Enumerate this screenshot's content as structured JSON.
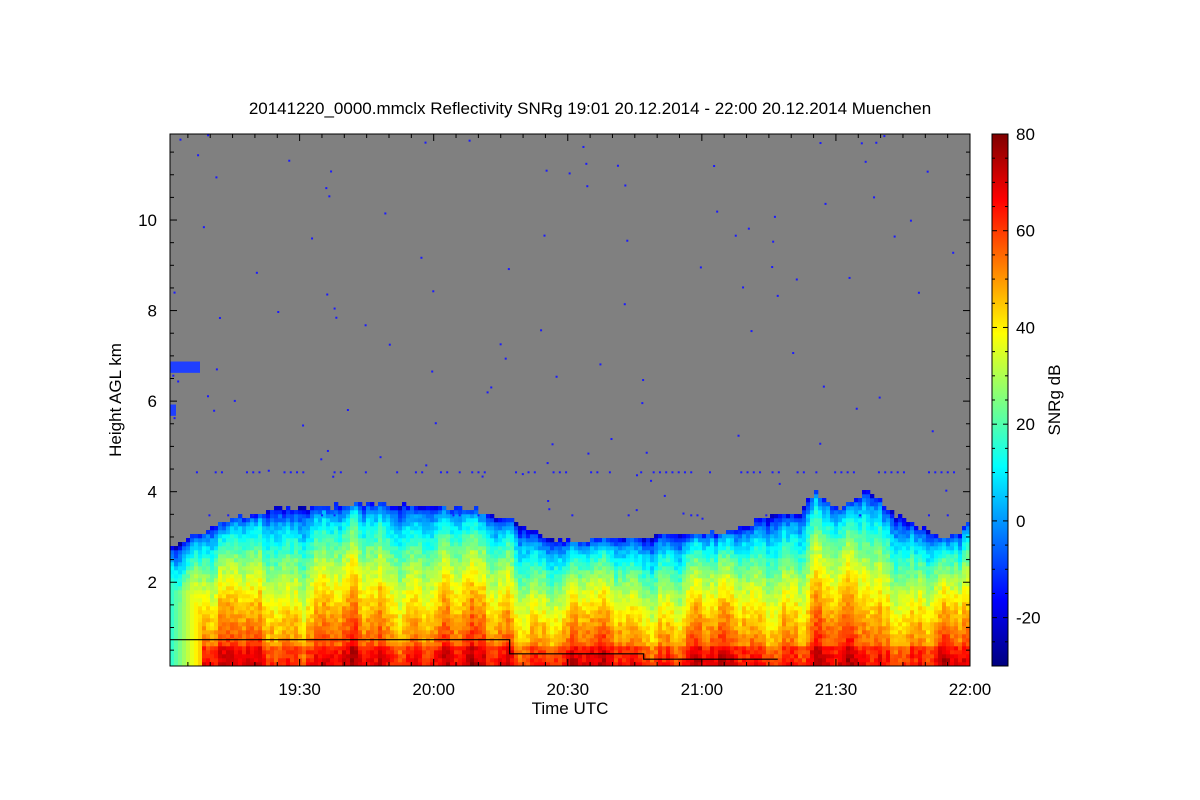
{
  "chart_data": {
    "type": "heatmap",
    "title": "20141220_0000.mmclx Reflectivity SNRg   19:01 20.12.2014 - 22:00 20.12.2014 Muenchen",
    "xlabel": "Time UTC",
    "ylabel": "Height AGL km",
    "x_range_minutes": [
      1141,
      1320
    ],
    "y_range_km": [
      0.15,
      11.9
    ],
    "x_ticks": [
      {
        "min": 1170,
        "label": "19:30"
      },
      {
        "min": 1200,
        "label": "20:00"
      },
      {
        "min": 1230,
        "label": "20:30"
      },
      {
        "min": 1260,
        "label": "21:00"
      },
      {
        "min": 1290,
        "label": "21:30"
      },
      {
        "min": 1320,
        "label": "22:00"
      }
    ],
    "y_ticks": [
      {
        "km": 2,
        "label": "2"
      },
      {
        "km": 4,
        "label": "4"
      },
      {
        "km": 6,
        "label": "6"
      },
      {
        "km": 8,
        "label": "8"
      },
      {
        "km": 10,
        "label": "10"
      }
    ],
    "colorbar": {
      "label": "SNRg dB",
      "range": [
        -30,
        80
      ],
      "ticks": [
        {
          "v": 80,
          "label": "80"
        },
        {
          "v": 60,
          "label": "60"
        },
        {
          "v": 40,
          "label": "40"
        },
        {
          "v": 20,
          "label": "20"
        },
        {
          "v": 0,
          "label": "0"
        },
        {
          "v": -20,
          "label": "-20"
        }
      ],
      "colors": [
        "#00007f",
        "#0000ff",
        "#007fff",
        "#00ffff",
        "#7fff7f",
        "#ffff00",
        "#ff7f00",
        "#ff0000",
        "#7f0000"
      ]
    },
    "background_color": "#808080",
    "cloud_top_km": [
      [
        1141,
        2.75
      ],
      [
        1146,
        2.95
      ],
      [
        1152,
        3.25
      ],
      [
        1158,
        3.45
      ],
      [
        1165,
        3.6
      ],
      [
        1175,
        3.6
      ],
      [
        1185,
        3.7
      ],
      [
        1195,
        3.65
      ],
      [
        1205,
        3.6
      ],
      [
        1210,
        3.55
      ],
      [
        1215,
        3.35
      ],
      [
        1220,
        3.2
      ],
      [
        1225,
        2.95
      ],
      [
        1230,
        2.85
      ],
      [
        1240,
        2.9
      ],
      [
        1250,
        3.0
      ],
      [
        1260,
        3.0
      ],
      [
        1268,
        3.1
      ],
      [
        1275,
        3.4
      ],
      [
        1282,
        3.5
      ],
      [
        1285,
        3.95
      ],
      [
        1290,
        3.6
      ],
      [
        1294,
        3.7
      ],
      [
        1297,
        4.05
      ],
      [
        1302,
        3.55
      ],
      [
        1308,
        3.2
      ],
      [
        1314,
        2.9
      ],
      [
        1318,
        3.05
      ],
      [
        1320,
        3.3
      ]
    ],
    "step_line_km": [
      [
        1141,
        0.73
      ],
      [
        1217,
        0.73
      ],
      [
        1217,
        0.42
      ],
      [
        1247,
        0.42
      ],
      [
        1247,
        0.3
      ],
      [
        1277,
        0.3
      ]
    ]
  }
}
